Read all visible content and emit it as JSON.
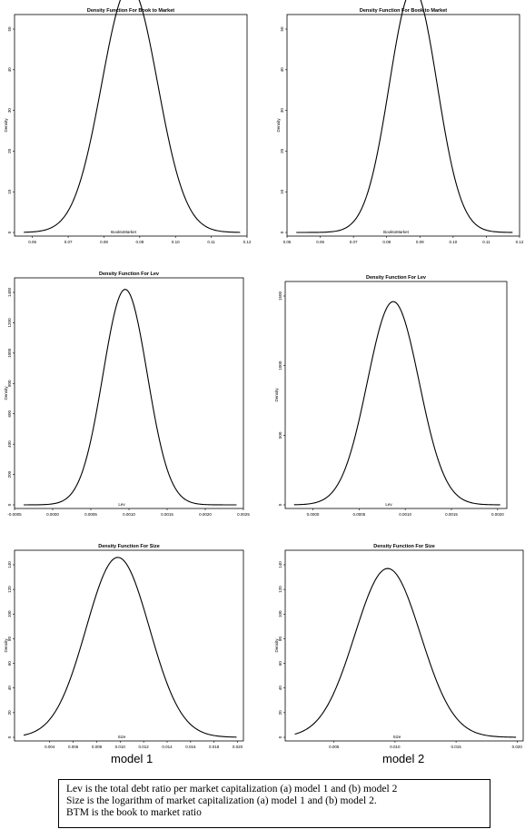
{
  "chart_data": [
    {
      "type": "line",
      "title": "Density Function For Book to Market",
      "xlabel": "BooktoMarket",
      "ylabel": "Density",
      "xlim": [
        0.055,
        0.12
      ],
      "ylim": [
        0,
        50
      ],
      "xticks": [
        "0.06",
        "0.07",
        "0.08",
        "0.09",
        "0.10",
        "0.11",
        "0.12"
      ],
      "yticks": [
        "0",
        "10",
        "20",
        "30",
        "40",
        "50"
      ],
      "density": {
        "mu": 0.0872,
        "sd": 0.0078,
        "peak": 60.5
      }
    },
    {
      "type": "line",
      "title": "Density Function For Book to Market",
      "xlabel": "BooktoMarket",
      "ylabel": "Density",
      "xlim": [
        0.05,
        0.12
      ],
      "ylim": [
        0,
        50
      ],
      "xticks": [
        "0.05",
        "0.06",
        "0.07",
        "0.08",
        "0.09",
        "0.10",
        "0.11",
        "0.12"
      ],
      "yticks": [
        "0",
        "10",
        "20",
        "30",
        "40",
        "50"
      ],
      "density": {
        "mu": 0.088,
        "sd": 0.0072,
        "peak": 60
      }
    },
    {
      "type": "line",
      "title": "Density Function For Lev",
      "xlabel": "Lev",
      "ylabel": "Density",
      "xlim": [
        -0.0005,
        0.0025
      ],
      "ylim": [
        0,
        1400
      ],
      "xticks": [
        "-0.0005",
        "0.0000",
        "0.0005",
        "0.0010",
        "0.0015",
        "0.0020",
        "0.0025"
      ],
      "yticks": [
        "0",
        "200",
        "400",
        "600",
        "800",
        "1000",
        "1200",
        "1400"
      ],
      "density": {
        "mu": 0.00095,
        "sd": 0.00029,
        "peak": 1420
      }
    },
    {
      "type": "line",
      "title": "Density Function For Lev",
      "xlabel": "Lev",
      "ylabel": "Density",
      "xlim": [
        -0.0003,
        0.0021
      ],
      "ylim": [
        0,
        1500
      ],
      "xticks": [
        "0.0000",
        "0.0005",
        "0.0010",
        "0.0015",
        "0.0020"
      ],
      "yticks": [
        "0",
        "500",
        "1000",
        "1500"
      ],
      "density": {
        "mu": 0.00087,
        "sd": 0.00028,
        "peak": 1460
      }
    },
    {
      "type": "line",
      "title": "Density Function For Size",
      "xlabel": "Size",
      "ylabel": "Density",
      "xlim": [
        0.001,
        0.0205
      ],
      "ylim": [
        0,
        140
      ],
      "xticks": [
        "0.004",
        "0.006",
        "0.008",
        "0.010",
        "0.012",
        "0.014",
        "0.016",
        "0.018",
        "0.020"
      ],
      "yticks": [
        "0",
        "20",
        "40",
        "60",
        "80",
        "100",
        "120",
        "140"
      ],
      "density": {
        "mu": 0.0098,
        "sd": 0.0027,
        "peak": 146
      }
    },
    {
      "type": "line",
      "title": "Density Function For Size",
      "xlabel": "Size",
      "ylabel": "Density",
      "xlim": [
        0.001,
        0.0205
      ],
      "ylim": [
        0,
        140
      ],
      "xticks": [
        "0.005",
        "0.010",
        "0.015",
        "0.020"
      ],
      "yticks": [
        "0",
        "20",
        "40",
        "60",
        "80",
        "100",
        "120",
        "140"
      ],
      "density": {
        "mu": 0.0094,
        "sd": 0.0027,
        "peak": 137
      }
    }
  ],
  "labels": {
    "model1": "model 1",
    "model2": "model 2"
  },
  "caption": {
    "line1": "Lev is the total debt ratio per market capitalization (a) model 1 and (b) model 2",
    "line2": "Size is the logarithm of market capitalization (a) model 1 and (b) model 2.",
    "line3": "BTM is the book to market ratio"
  }
}
